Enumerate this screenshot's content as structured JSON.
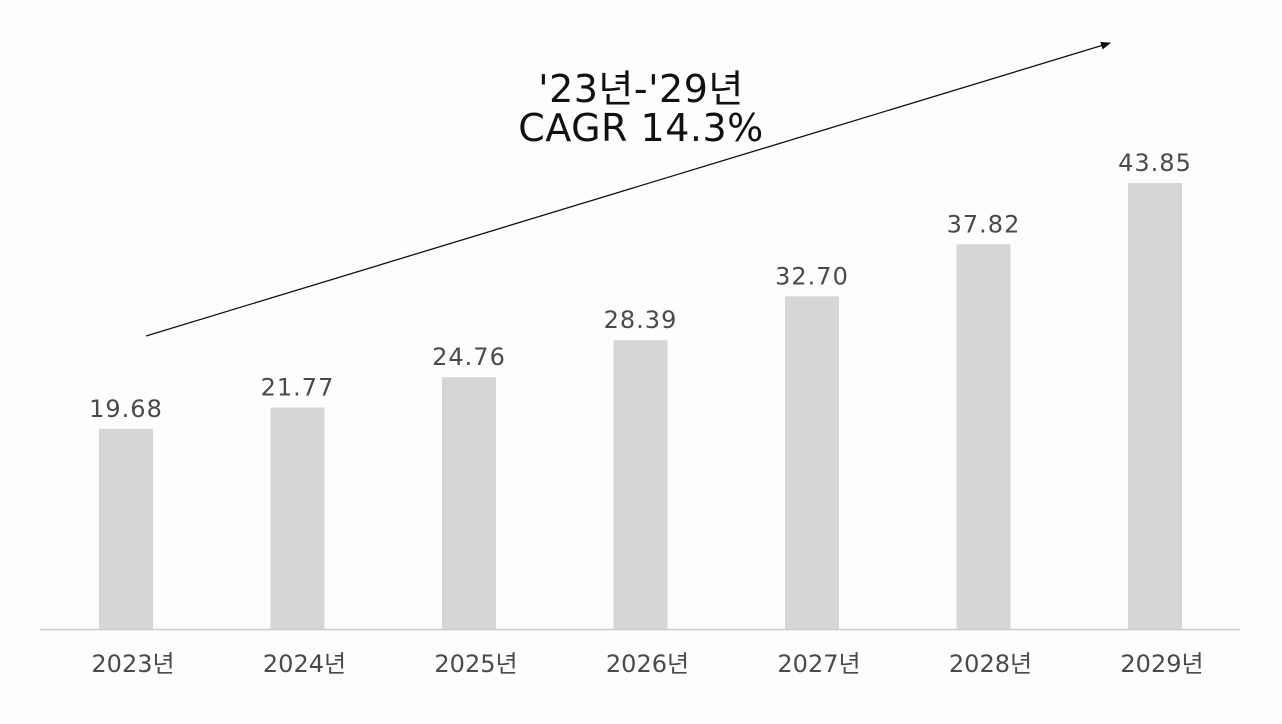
{
  "annotation": {
    "period": "'23년-'29년",
    "cagr": "CAGR 14.3%"
  },
  "colors": {
    "bar": "#d6d6d6",
    "axis": "#cccccc",
    "label": "#4a4a4a",
    "arrow": "#111111",
    "background": "#fdfdfd"
  },
  "chart_data": {
    "type": "bar",
    "categories": [
      "2023년",
      "2024년",
      "2025년",
      "2026년",
      "2027년",
      "2028년",
      "2029년"
    ],
    "values": [
      19.68,
      21.77,
      24.76,
      28.39,
      32.7,
      37.82,
      43.85
    ],
    "value_labels": [
      "19.68",
      "21.77",
      "24.76",
      "28.39",
      "32.70",
      "37.82",
      "43.85"
    ],
    "title": "",
    "xlabel": "",
    "ylabel": "",
    "ylim": [
      0,
      43.85
    ],
    "grid": false,
    "legend": "none",
    "trend_arrow": true
  }
}
